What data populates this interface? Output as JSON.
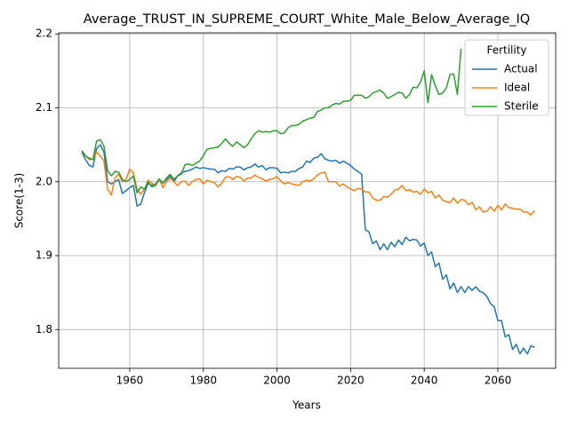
{
  "chart_data": {
    "type": "line",
    "title": "Average_TRUST_IN_SUPREME_COURT_White_Male_Below_Average_IQ",
    "xlabel": "Years",
    "ylabel": "Score(1-3)",
    "x": [
      1947,
      1948,
      1949,
      1950,
      1951,
      1952,
      1953,
      1954,
      1955,
      1956,
      1957,
      1958,
      1959,
      1960,
      1961,
      1962,
      1963,
      1964,
      1965,
      1966,
      1967,
      1968,
      1969,
      1970,
      1971,
      1972,
      1973,
      1974,
      1975,
      1976,
      1977,
      1978,
      1979,
      1980,
      1981,
      1982,
      1983,
      1984,
      1985,
      1986,
      1987,
      1988,
      1989,
      1990,
      1991,
      1992,
      1993,
      1994,
      1995,
      1996,
      1997,
      1998,
      1999,
      2000,
      2001,
      2002,
      2003,
      2004,
      2005,
      2006,
      2007,
      2008,
      2009,
      2010,
      2011,
      2012,
      2013,
      2014,
      2015,
      2016,
      2017,
      2018,
      2019,
      2020,
      2021,
      2022,
      2023,
      2024,
      2025,
      2026,
      2027,
      2028,
      2029,
      2030,
      2031,
      2032,
      2033,
      2034,
      2035,
      2036,
      2037,
      2038,
      2039,
      2040,
      2041,
      2042,
      2043,
      2044,
      2045,
      2046,
      2047,
      2048,
      2049,
      2050,
      2051,
      2052,
      2053,
      2054,
      2055,
      2056,
      2057,
      2058,
      2059,
      2060,
      2061,
      2062,
      2063,
      2064,
      2065,
      2066,
      2067,
      2068,
      2069,
      2070
    ],
    "series": [
      {
        "name": "Actual",
        "color": "#1f77b4",
        "values": [
          2.04,
          2.03,
          2.022,
          2.02,
          2.045,
          2.05,
          2.04,
          2.0,
          1.997,
          2.0,
          2.003,
          1.984,
          1.988,
          1.992,
          1.995,
          1.967,
          1.97,
          1.985,
          1.998,
          1.995,
          1.997,
          2.004,
          1.998,
          2.003,
          2.008,
          2.0,
          2.008,
          2.012,
          2.014,
          2.015,
          2.017,
          2.02,
          2.018,
          2.019,
          2.018,
          2.017,
          2.017,
          2.012,
          2.015,
          2.014,
          2.018,
          2.017,
          2.02,
          2.02,
          2.016,
          2.019,
          2.02,
          2.024,
          2.02,
          2.022,
          2.016,
          2.019,
          2.019,
          2.018,
          2.012,
          2.013,
          2.012,
          2.014,
          2.014,
          2.018,
          2.02,
          2.028,
          2.026,
          2.032,
          2.033,
          2.038,
          2.031,
          2.029,
          2.028,
          2.029,
          2.025,
          2.028,
          2.025,
          2.022,
          2.017,
          2.014,
          2.01,
          1.935,
          1.932,
          1.916,
          1.92,
          1.908,
          1.916,
          1.908,
          1.918,
          1.912,
          1.921,
          1.915,
          1.925,
          1.92,
          1.922,
          1.921,
          1.913,
          1.917,
          1.9,
          1.905,
          1.885,
          1.89,
          1.868,
          1.874,
          1.855,
          1.863,
          1.85,
          1.858,
          1.85,
          1.858,
          1.853,
          1.858,
          1.852,
          1.85,
          1.845,
          1.835,
          1.831,
          1.812,
          1.812,
          1.79,
          1.793,
          1.773,
          1.78,
          1.767,
          1.775,
          1.767,
          1.778,
          1.776
        ]
      },
      {
        "name": "Ideal",
        "color": "#ff7f0e",
        "values": [
          2.042,
          2.035,
          2.03,
          2.03,
          2.04,
          2.035,
          2.028,
          1.99,
          1.982,
          2.005,
          2.01,
          2.0,
          2.003,
          2.017,
          2.012,
          1.99,
          1.983,
          1.99,
          2.002,
          1.998,
          1.995,
          2.004,
          1.992,
          2.0,
          2.005,
          2.0,
          1.995,
          2.0,
          2.001,
          1.995,
          2.0,
          2.003,
          2.004,
          1.997,
          2.002,
          2.0,
          1.999,
          1.993,
          1.998,
          2.006,
          2.007,
          2.003,
          2.007,
          2.006,
          2.001,
          2.005,
          2.005,
          2.009,
          2.006,
          2.004,
          2.001,
          2.003,
          2.004,
          2.007,
          2.001,
          1.997,
          1.999,
          1.997,
          1.996,
          1.995,
          2.0,
          2.002,
          2.001,
          2.004,
          2.009,
          2.012,
          2.013,
          2.0,
          2.0,
          2.0,
          1.994,
          1.997,
          1.993,
          1.99,
          1.988,
          1.991,
          1.99,
          1.986,
          1.986,
          1.978,
          1.975,
          1.975,
          1.98,
          1.979,
          1.983,
          1.989,
          1.99,
          1.995,
          1.988,
          1.989,
          1.986,
          1.987,
          1.983,
          1.99,
          1.985,
          1.987,
          1.978,
          1.982,
          1.975,
          1.973,
          1.972,
          1.978,
          1.971,
          1.976,
          1.975,
          1.969,
          1.972,
          1.962,
          1.966,
          1.959,
          1.96,
          1.966,
          1.96,
          1.968,
          1.962,
          1.97,
          1.965,
          1.964,
          1.963,
          1.963,
          1.959,
          1.959,
          1.955,
          1.961
        ]
      },
      {
        "name": "Sterile",
        "color": "#2ca02c",
        "values": [
          2.042,
          2.035,
          2.032,
          2.03,
          2.055,
          2.057,
          2.048,
          2.015,
          2.008,
          2.014,
          2.013,
          2.003,
          2.0,
          2.003,
          2.008,
          1.985,
          1.993,
          1.99,
          2.0,
          1.993,
          1.995,
          2.003,
          1.998,
          2.005,
          2.01,
          2.003,
          2.008,
          2.01,
          2.023,
          2.024,
          2.022,
          2.025,
          2.028,
          2.035,
          2.044,
          2.045,
          2.046,
          2.047,
          2.052,
          2.058,
          2.052,
          2.048,
          2.054,
          2.05,
          2.046,
          2.05,
          2.058,
          2.065,
          2.069,
          2.067,
          2.068,
          2.067,
          2.069,
          2.069,
          2.065,
          2.066,
          2.073,
          2.076,
          2.076,
          2.078,
          2.082,
          2.084,
          2.086,
          2.087,
          2.095,
          2.097,
          2.1,
          2.1,
          2.104,
          2.106,
          2.105,
          2.109,
          2.109,
          2.11,
          2.117,
          2.117,
          2.117,
          2.113,
          2.115,
          2.12,
          2.122,
          2.124,
          2.12,
          2.113,
          2.115,
          2.118,
          2.121,
          2.12,
          2.113,
          2.118,
          2.128,
          2.127,
          2.135,
          2.15,
          2.107,
          2.145,
          2.13,
          2.118,
          2.12,
          2.127,
          2.145,
          2.146,
          2.118,
          2.18,
          null,
          null,
          null,
          null,
          null,
          null,
          null,
          null,
          null,
          null,
          null,
          null,
          null,
          null,
          null,
          null,
          null,
          null,
          null,
          null
        ]
      }
    ],
    "xlim": [
      1940.7,
      2075.7
    ],
    "ylim": [
      1.7475,
      2.2015
    ],
    "xticks": [
      1960,
      1980,
      2000,
      2020,
      2040,
      2060
    ],
    "yticks": [
      1.8,
      1.9,
      {
        "value": 2,
        "label": "2.0"
      },
      2.1,
      2.2
    ],
    "grid": true,
    "legend": {
      "title": "Fertility",
      "loc": "upper right"
    }
  }
}
